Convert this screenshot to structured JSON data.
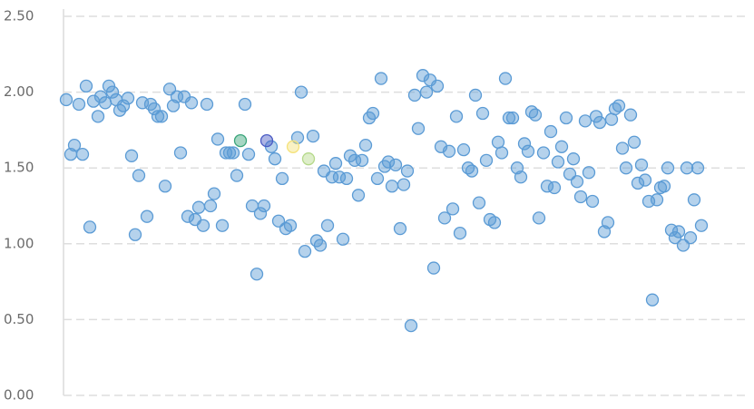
{
  "chart_data": {
    "type": "scatter",
    "xlim": [
      70,
      825
    ],
    "ylim": [
      0,
      2.5
    ],
    "yticks": [
      {
        "value": 0,
        "label": "0.00"
      },
      {
        "value": 0.5,
        "label": "0.50"
      },
      {
        "value": 1,
        "label": "1.00"
      },
      {
        "value": 1.5,
        "label": "1.50"
      },
      {
        "value": 2,
        "label": "2.00"
      },
      {
        "value": 2.5,
        "label": "2.50"
      }
    ],
    "grid": true,
    "series": [
      {
        "color": "#5b9bd5",
        "x": [
          73,
          78,
          82,
          87,
          91,
          95,
          99,
          103,
          108,
          111,
          116,
          120,
          124,
          128,
          132,
          136,
          141,
          145,
          149,
          153,
          157,
          162,
          166,
          170,
          174,
          178,
          182,
          187,
          191,
          195,
          199,
          203,
          207,
          211,
          215,
          219,
          224,
          228,
          232,
          236,
          240,
          245,
          249,
          253,
          257,
          261,
          270,
          274,
          278,
          283,
          287,
          291,
          299,
          303,
          307,
          311,
          315,
          320,
          328,
          332,
          336,
          345,
          349,
          353,
          357,
          361,
          366,
          370,
          374,
          378,
          382,
          386,
          391,
          395,
          399,
          403,
          407,
          411,
          416,
          420,
          424,
          428,
          432,
          436,
          441,
          445,
          449,
          453,
          457,
          461,
          466,
          470,
          474,
          478,
          482,
          486,
          490,
          495,
          499,
          503,
          507,
          511,
          516,
          520,
          524,
          528,
          532,
          536,
          540,
          545,
          549,
          553,
          557,
          561,
          565,
          570,
          574,
          578,
          582,
          586,
          590,
          594,
          599,
          603,
          607,
          611,
          615,
          619,
          624,
          628,
          632,
          636,
          640,
          645,
          649,
          653,
          657,
          661,
          666,
          670,
          674,
          678,
          682,
          686,
          690,
          695,
          699,
          703,
          707,
          711,
          715,
          719,
          724,
          728,
          732,
          736,
          740,
          744,
          748,
          753,
          757,
          761,
          765,
          769,
          773
        ],
        "values": [
          1.95,
          1.59,
          1.65,
          1.92,
          1.59,
          2.04,
          1.11,
          1.94,
          1.84,
          1.97,
          1.93,
          2.04,
          2.0,
          1.95,
          1.88,
          1.91,
          1.96,
          1.58,
          1.06,
          1.45,
          1.93,
          1.18,
          1.92,
          1.89,
          1.84,
          1.84,
          1.38,
          2.02,
          1.91,
          1.97,
          1.6,
          1.97,
          1.18,
          1.93,
          1.16,
          1.24,
          1.12,
          1.92,
          1.25,
          1.33,
          1.69,
          1.12,
          1.6,
          1.6,
          1.6,
          1.45,
          1.92,
          1.59,
          1.25,
          0.8,
          1.2,
          1.25,
          1.64,
          1.56,
          1.15,
          1.43,
          1.1,
          1.12,
          1.7,
          2.0,
          0.95,
          1.71,
          1.02,
          0.99,
          1.48,
          1.12,
          1.44,
          1.53,
          1.44,
          1.03,
          1.43,
          1.58,
          1.55,
          1.32,
          1.55,
          1.65,
          1.83,
          1.86,
          1.43,
          2.09,
          1.51,
          1.54,
          1.38,
          1.52,
          1.1,
          1.39,
          1.48,
          0.46,
          1.98,
          1.76,
          2.11,
          2.0,
          2.08,
          0.84,
          2.04,
          1.64,
          1.17,
          1.61,
          1.23,
          1.84,
          1.07,
          1.62,
          1.5,
          1.48,
          1.98,
          1.27,
          1.86,
          1.55,
          1.16,
          1.14,
          1.67,
          1.6,
          2.09,
          1.83,
          1.83,
          1.5,
          1.44,
          1.66,
          1.61,
          1.87,
          1.85,
          1.17,
          1.6,
          1.38,
          1.74,
          1.37,
          1.54,
          1.64,
          1.83,
          1.46,
          1.56,
          1.41,
          1.31,
          1.81,
          1.47,
          1.28,
          1.84,
          1.8,
          1.08,
          1.14,
          1.82,
          1.89,
          1.91,
          1.63,
          1.5,
          1.85,
          1.67,
          1.4,
          1.52,
          1.42,
          1.28,
          0.63,
          1.29,
          1.37,
          1.38,
          1.5,
          1.09,
          1.04,
          1.08,
          0.99,
          1.5,
          1.04,
          1.29,
          1.5,
          1.12
        ]
      },
      {
        "color": "#3aa57a",
        "x": [
          265
        ],
        "values": [
          1.68
        ]
      },
      {
        "color": "#4a5bc4",
        "x": [
          294
        ],
        "values": [
          1.68
        ]
      },
      {
        "color": "#f5e27a",
        "x": [
          323
        ],
        "values": [
          1.64
        ]
      },
      {
        "color": "#b5d98a",
        "x": [
          340
        ],
        "values": [
          1.56
        ]
      }
    ]
  }
}
